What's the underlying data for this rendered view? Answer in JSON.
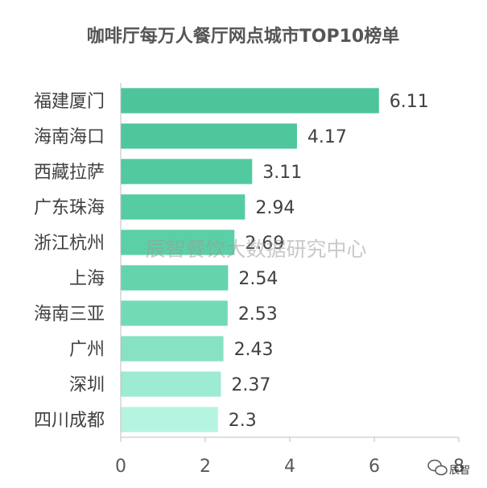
{
  "chart_data": {
    "type": "bar",
    "orientation": "horizontal",
    "title": "咖啡厅每万人餐厅网点城市TOP10榜单",
    "categories": [
      "福建厦门",
      "海南海口",
      "西藏拉萨",
      "广东珠海",
      "浙江杭州",
      "上海",
      "海南三亚",
      "广州",
      "深圳",
      "四川成都"
    ],
    "values": [
      6.11,
      4.17,
      3.11,
      2.94,
      2.69,
      2.54,
      2.53,
      2.43,
      2.37,
      2.3
    ],
    "value_labels": [
      "6.11",
      "4.17",
      "3.11",
      "2.94",
      "2.69",
      "2.54",
      "2.53",
      "2.43",
      "2.37",
      "2.3"
    ],
    "xlim": [
      0,
      8
    ],
    "xticks": [
      "0",
      "2",
      "4",
      "6",
      "8"
    ],
    "bar_colors": [
      "#4dc49a",
      "#4fc69c",
      "#52c99f",
      "#55cca2",
      "#5bd0a7",
      "#64d4ad",
      "#72dbb6",
      "#86e2c3",
      "#9debd2",
      "#b6f4e2"
    ],
    "grid": false,
    "legend": "none"
  },
  "watermark": "辰智餐饮大数据研究中心",
  "logo_text": "辰智"
}
